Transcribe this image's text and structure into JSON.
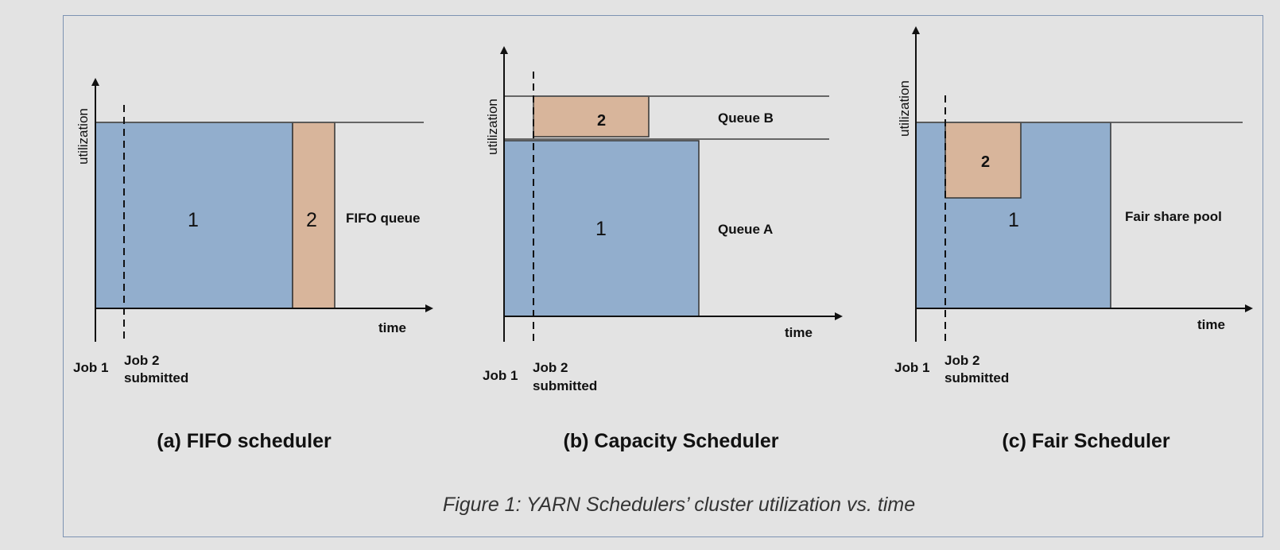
{
  "caption": "Figure 1: YARN Schedulers’ cluster utilization vs. time",
  "panels": {
    "fifo": {
      "subtitle": "(a) FIFO scheduler",
      "y_label": "utilization",
      "x_label": "time",
      "job1_box": "1",
      "job2_box": "2",
      "queue_label": "FIFO queue",
      "job1_marker": "Job 1",
      "job2_marker_line1": "Job 2",
      "job2_marker_line2": "submitted"
    },
    "capacity": {
      "subtitle": "(b) Capacity Scheduler",
      "y_label": "utilization",
      "x_label": "time",
      "job1_box": "1",
      "job2_box": "2",
      "queue_a_label": "Queue A",
      "queue_b_label": "Queue B",
      "job1_marker": "Job 1",
      "job2_marker_line1": "Job 2",
      "job2_marker_line2": "submitted"
    },
    "fair": {
      "subtitle": "(c) Fair Scheduler",
      "y_label": "utilization",
      "x_label": "time",
      "job1_box": "1",
      "job2_box": "2",
      "pool_label": "Fair share pool",
      "job1_marker": "Job 1",
      "job2_marker_line1": "Job 2",
      "job2_marker_line2": "submitted"
    }
  },
  "colors": {
    "job1_fill": "#92aecd",
    "job2_fill": "#d8b59b",
    "frame_border": "#7d93b2",
    "background": "#e3e3e3"
  }
}
